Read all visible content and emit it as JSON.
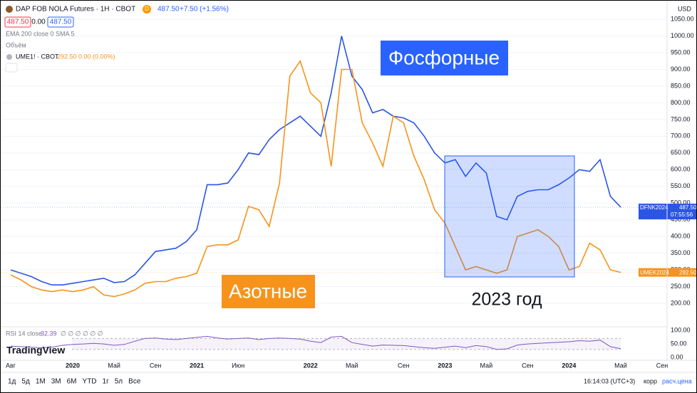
{
  "header": {
    "symbol": "DAP FOB NOLA Futures · 1H · CBOT",
    "interval_badge": "D",
    "last": "487.50",
    "change": "+7.50 (+1.56%)",
    "sell": "487.50",
    "spread": "0.00",
    "buy": "487.50",
    "indicators": "EMA 200 close 0 SMA 5",
    "volume": "Объём",
    "currency": "USD",
    "logo": "TradingView"
  },
  "toolbar": {
    "ranges": [
      "1д",
      "5д",
      "1М",
      "3М",
      "6М",
      "YTD",
      "1г",
      "5л",
      "Все"
    ],
    "time": "16:14:03 (UTC+3)",
    "adj": "корр",
    "settle": "расч.цена"
  },
  "chart_data": [
    {
      "type": "line",
      "categories": [
        "Авг",
        null,
        null,
        null,
        null,
        null,
        "2020",
        null,
        null,
        null,
        "Май",
        null,
        null,
        null,
        "Сен",
        null,
        null,
        null,
        "2021",
        null,
        null,
        null,
        "Июн",
        null,
        null,
        null,
        null,
        null,
        null,
        "2022",
        null,
        null,
        null,
        "Май",
        null,
        null,
        null,
        null,
        "Сен",
        null,
        null,
        null,
        "2023",
        null,
        null,
        null,
        "Май",
        null,
        null,
        null,
        "Сен",
        null,
        null,
        null,
        "2024",
        null,
        null,
        null,
        null,
        "Май",
        null,
        null,
        null,
        "Сен"
      ],
      "series": [
        {
          "name": "DAP FOB NOLA Futures · 1H · CBOT",
          "color": "#2a55e5",
          "tag": "DFNK2024",
          "tag_price": "487.50",
          "tag_timer": "07:55:56",
          "values": [
            300,
            290,
            280,
            265,
            255,
            255,
            260,
            265,
            270,
            275,
            262,
            265,
            285,
            320,
            355,
            360,
            365,
            385,
            420,
            555,
            555,
            560,
            600,
            650,
            645,
            690,
            720,
            740,
            760,
            730,
            700,
            830,
            1000,
            880,
            840,
            770,
            780,
            760,
            755,
            740,
            700,
            650,
            620,
            630,
            580,
            620,
            590,
            460,
            450,
            520,
            535,
            540,
            540,
            555,
            575,
            600,
            595,
            630,
            520,
            487.5,
            null,
            null,
            null,
            null
          ]
        },
        {
          "name": "UME1! · CBOT",
          "color": "#f7931a",
          "legend_value": "292.50 0.00 (0.00%)",
          "tag": "UMEK2024",
          "tag_price": "292.50",
          "values": [
            285,
            270,
            250,
            240,
            235,
            240,
            235,
            240,
            250,
            225,
            220,
            228,
            240,
            260,
            265,
            265,
            275,
            280,
            290,
            370,
            375,
            375,
            390,
            490,
            480,
            430,
            560,
            880,
            925,
            830,
            800,
            610,
            900,
            900,
            740,
            680,
            610,
            760,
            740,
            640,
            570,
            480,
            440,
            370,
            300,
            310,
            300,
            290,
            300,
            400,
            410,
            420,
            400,
            370,
            300,
            310,
            380,
            360,
            300,
            292.5,
            null,
            null,
            null,
            null
          ]
        }
      ],
      "ylim": [
        134,
        1095
      ],
      "yticks": [
        {
          "value": 200,
          "label": "200.00"
        },
        {
          "value": 250,
          "label": "250.00"
        },
        {
          "value": 300,
          "label": "300.00"
        },
        {
          "value": 350,
          "label": "350.00"
        },
        {
          "value": 400,
          "label": "400.00"
        },
        {
          "value": 450,
          "label": "450.00"
        },
        {
          "value": 500,
          "label": "500.00"
        },
        {
          "value": 550,
          "label": "550.00"
        },
        {
          "value": 600,
          "label": "600.00"
        },
        {
          "value": 650,
          "label": "650.00"
        },
        {
          "value": 700,
          "label": "700.00"
        },
        {
          "value": 750,
          "label": "750.00"
        },
        {
          "value": 800,
          "label": "800.00"
        },
        {
          "value": 850,
          "label": "850.00"
        },
        {
          "value": 900,
          "label": "900.00"
        },
        {
          "value": 950,
          "label": "950.00"
        },
        {
          "value": 1000,
          "label": "1000.00"
        },
        {
          "value": 1050,
          "label": "1050.00"
        }
      ],
      "grid": true,
      "annotations": [
        "Фосфорные",
        "Азотные",
        "2023 год"
      ]
    },
    {
      "type": "rsi",
      "title": "RSI 14 close",
      "last": "32.39",
      "extra": "∅ ∅ ∅ ∅ ∅ ∅",
      "color": "#7e57c2",
      "values": [
        42,
        40,
        38,
        36,
        38,
        45,
        48,
        50,
        52,
        50,
        45,
        48,
        60,
        70,
        72,
        68,
        66,
        70,
        74,
        78,
        72,
        68,
        70,
        72,
        66,
        70,
        72,
        70,
        68,
        60,
        55,
        75,
        78,
        55,
        48,
        42,
        46,
        45,
        44,
        40,
        36,
        34,
        38,
        42,
        36,
        44,
        40,
        30,
        32,
        46,
        50,
        52,
        54,
        56,
        58,
        62,
        60,
        64,
        40,
        32.39,
        null,
        null,
        null,
        null
      ],
      "ylim": [
        -10,
        113
      ],
      "yticks": [
        {
          "value": 0,
          "label": "0.00"
        },
        {
          "value": 50,
          "label": "50.00"
        },
        {
          "value": 100,
          "label": "100.00"
        }
      ],
      "band": [
        30,
        70
      ]
    }
  ]
}
